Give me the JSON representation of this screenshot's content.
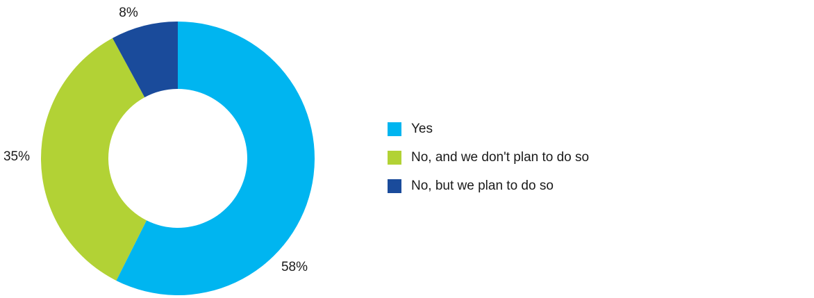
{
  "chart_data": {
    "type": "pie",
    "donut": true,
    "categories": [
      "Yes",
      "No, and we don't plan to do so",
      "No, but we plan to do so"
    ],
    "values": [
      58,
      35,
      8
    ],
    "labels": [
      "58%",
      "35%",
      "8%"
    ],
    "colors": [
      "#00b5f0",
      "#b2d235",
      "#1a4b9b"
    ],
    "legend_position": "right",
    "start": "top",
    "direction": "clockwise"
  }
}
